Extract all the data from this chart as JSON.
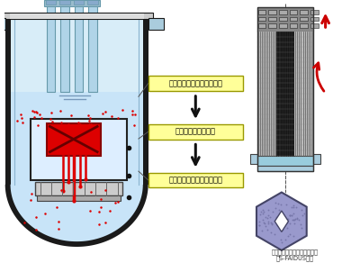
{
  "bg_color": "#ffffff",
  "label1": "溶融燃料の炉心外への流出",
  "label2": "流出後の燃料再配置",
  "label3": "原子炉容器内での安定冷却",
  "caption": "改良内部ダクト型燃料集合体\n（S-FAIDUS型）",
  "reactor_fill": "#c8e4f8",
  "reactor_outline": "#1a1a1a",
  "inner_fill": "#d8ecfc",
  "rod_fill": "#b0d4e8",
  "rod_outline": "#6699aa",
  "label_bg": "#ffff99",
  "label_border": "#999900",
  "red_color": "#dd0000",
  "arrow_black": "#111111",
  "fa_border": "#333333",
  "fa_bg_dark": "#666666",
  "fa_bg_light": "#bbbbbb",
  "fa_spacer": "#99ccdd",
  "hex_fill": "#9999cc",
  "hex_border": "#444466",
  "arrow_red": "#cc0000",
  "caption_color": "#333333",
  "core_fill": "#ddeeff",
  "line_color": "#555555"
}
